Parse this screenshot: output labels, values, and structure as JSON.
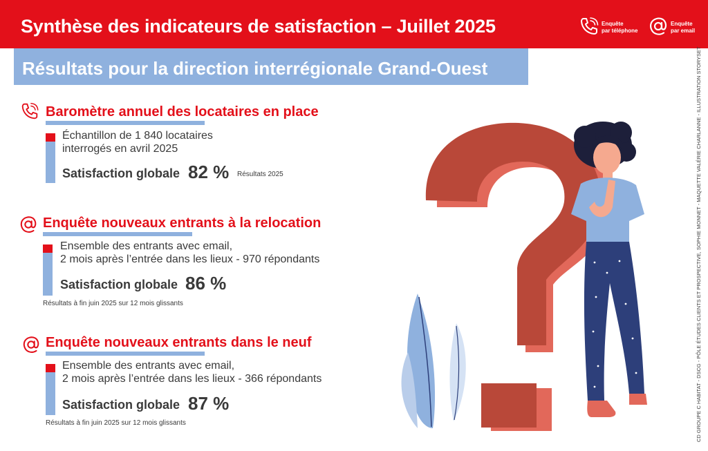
{
  "header": {
    "title": "Synthèse des indicateurs de satisfaction – Juillet 2025",
    "legend": {
      "phone_line1": "Enquête",
      "phone_line2": "par téléphone",
      "email_line1": "Enquête",
      "email_line2": "par email"
    }
  },
  "subheader": {
    "title": "Résultats pour la direction interrégionale Grand-Ouest"
  },
  "sections": [
    {
      "icon": "phone-icon",
      "title": "Baromètre annuel des locataires en place",
      "desc_line1": "Échantillon de 1 840 locataires",
      "desc_line2": "interrogés en avril 2025",
      "sat_label": "Satisfaction globale",
      "sat_value": "82 %",
      "note": "Résultats 2025"
    },
    {
      "icon": "at-icon",
      "title": "Enquête nouveaux entrants à la relocation",
      "desc_line1": "Ensemble des entrants avec email,",
      "desc_line2": "2 mois après l’entrée dans les lieux - 970 répondants",
      "sat_label": "Satisfaction globale",
      "sat_value": "86 %",
      "note": "Résultats à fin juin 2025 sur 12 mois glissants"
    },
    {
      "icon": "at-icon",
      "title": "Enquête nouveaux entrants dans le neuf",
      "desc_line1": "Ensemble des entrants avec email,",
      "desc_line2": "2 mois après l’entrée dans les lieux - 366 répondants",
      "sat_label": "Satisfaction globale",
      "sat_value": "87 %",
      "note": "Résultats à fin juin 2025 sur 12 mois glissants"
    }
  ],
  "credit": "CD GROUPE C HABITAT - DSCG - PÔLE ÉTUDES CLIENTS ET PROSPECTIVE, SOPHIE MONNET - MAQUETTE VALÉRIE CHARLANNE - ILLUSTRATION STORYSET",
  "colors": {
    "red": "#e3101a",
    "blue": "#8fb1de",
    "text": "#3a3a3a"
  }
}
